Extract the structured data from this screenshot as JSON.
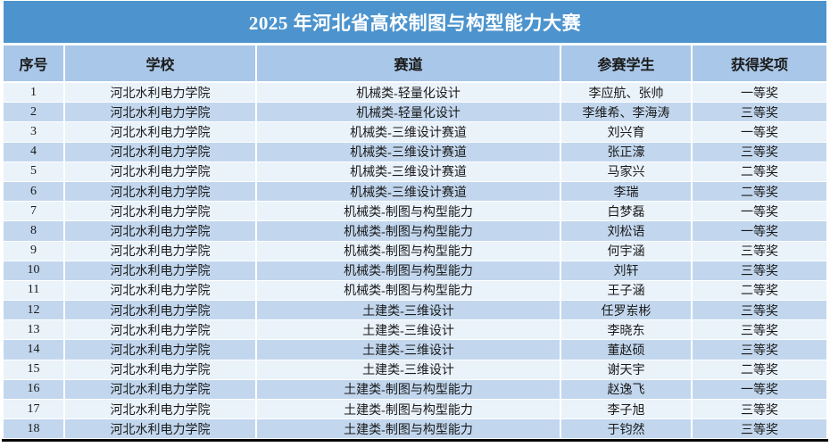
{
  "title": "2025 年河北省高校制图与构型能力大赛",
  "colors": {
    "title_bg": "#4d94ce",
    "title_text": "#ffffff",
    "header_bg": "#a9c7e8",
    "row_odd": "#eaf2fa",
    "row_even": "#c2d7ee",
    "separator": "#ffffff",
    "border_black": "#000000",
    "body_text": "#1a1a1a"
  },
  "table": {
    "columns": [
      "序号",
      "学校",
      "赛道",
      "参赛学生",
      "获得奖项"
    ],
    "rows": [
      [
        "1",
        "河北水利电力学院",
        "机械类-轻量化设计",
        "李应航、张帅",
        "一等奖"
      ],
      [
        "2",
        "河北水利电力学院",
        "机械类-轻量化设计",
        "李维希、李海涛",
        "三等奖"
      ],
      [
        "3",
        "河北水利电力学院",
        "机械类-三维设计赛道",
        "刘兴育",
        "一等奖"
      ],
      [
        "4",
        "河北水利电力学院",
        "机械类-三维设计赛道",
        "张正濠",
        "三等奖"
      ],
      [
        "5",
        "河北水利电力学院",
        "机械类-三维设计赛道",
        "马家兴",
        "二等奖"
      ],
      [
        "6",
        "河北水利电力学院",
        "机械类-三维设计赛道",
        "李瑞",
        "二等奖"
      ],
      [
        "7",
        "河北水利电力学院",
        "机械类-制图与构型能力",
        "白梦磊",
        "一等奖"
      ],
      [
        "8",
        "河北水利电力学院",
        "机械类-制图与构型能力",
        "刘松语",
        "一等奖"
      ],
      [
        "9",
        "河北水利电力学院",
        "机械类-制图与构型能力",
        "何宇涵",
        "三等奖"
      ],
      [
        "10",
        "河北水利电力学院",
        "机械类-制图与构型能力",
        "刘轩",
        "三等奖"
      ],
      [
        "11",
        "河北水利电力学院",
        "机械类-制图与构型能力",
        "王子涵",
        "二等奖"
      ],
      [
        "12",
        "河北水利电力学院",
        "土建类-三维设计",
        "任罗岽彬",
        "三等奖"
      ],
      [
        "13",
        "河北水利电力学院",
        "土建类-三维设计",
        "李晓东",
        "三等奖"
      ],
      [
        "14",
        "河北水利电力学院",
        "土建类-三维设计",
        "董赵硕",
        "三等奖"
      ],
      [
        "15",
        "河北水利电力学院",
        "土建类-三维设计",
        "谢天宇",
        "二等奖"
      ],
      [
        "16",
        "河北水利电力学院",
        "土建类-制图与构型能力",
        "赵逸飞",
        "一等奖"
      ],
      [
        "17",
        "河北水利电力学院",
        "土建类-制图与构型能力",
        "李子旭",
        "三等奖"
      ],
      [
        "18",
        "河北水利电力学院",
        "土建类-制图与构型能力",
        "于钧然",
        "三等奖"
      ]
    ]
  }
}
